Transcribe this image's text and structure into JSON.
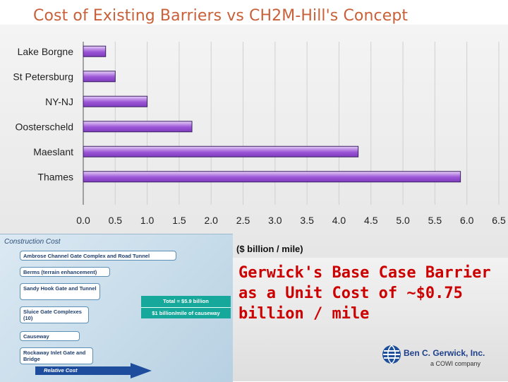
{
  "slide": {
    "title": "Cost of Existing Barriers vs CH2M-Hill's Concept",
    "unit_label": "($ billion / mile)",
    "note": "Gerwick's Base Case Barrier as a Unit Cost of ~$0.75 billion / mile"
  },
  "chart_data": {
    "type": "bar",
    "orientation": "horizontal",
    "categories": [
      "Lake Borgne",
      "St Petersburg",
      "NY-NJ",
      "Oosterscheld",
      "Maeslant",
      "Thames"
    ],
    "values": [
      0.35,
      0.5,
      1.0,
      1.7,
      4.3,
      5.9
    ],
    "xlim": [
      0,
      6.5
    ],
    "x_ticks": [
      "0.0",
      "0.5",
      "1.0",
      "1.5",
      "2.0",
      "2.5",
      "3.0",
      "3.5",
      "4.0",
      "4.5",
      "5.0",
      "5.5",
      "6.0",
      "6.5"
    ],
    "grid": true,
    "bar_color": "#9b55d6"
  },
  "inset": {
    "title": "Construction Cost",
    "items": [
      "Ambrose Channel Gate Complex and Road Tunnel",
      "Berms (terrain enhancement)",
      "Sandy Hook Gate and Tunnel",
      "Sluice Gate Complexes (10)",
      "Causeway",
      "Rockaway Inlet Gate and Bridge"
    ],
    "total_line1": "Total = $5.9 billion",
    "total_line2": "$1 billion/mile of causeway",
    "arrow_label": "Relative Cost"
  },
  "logo": {
    "name": "Ben C. Gerwick, Inc.",
    "subtitle": "a COWI company"
  }
}
